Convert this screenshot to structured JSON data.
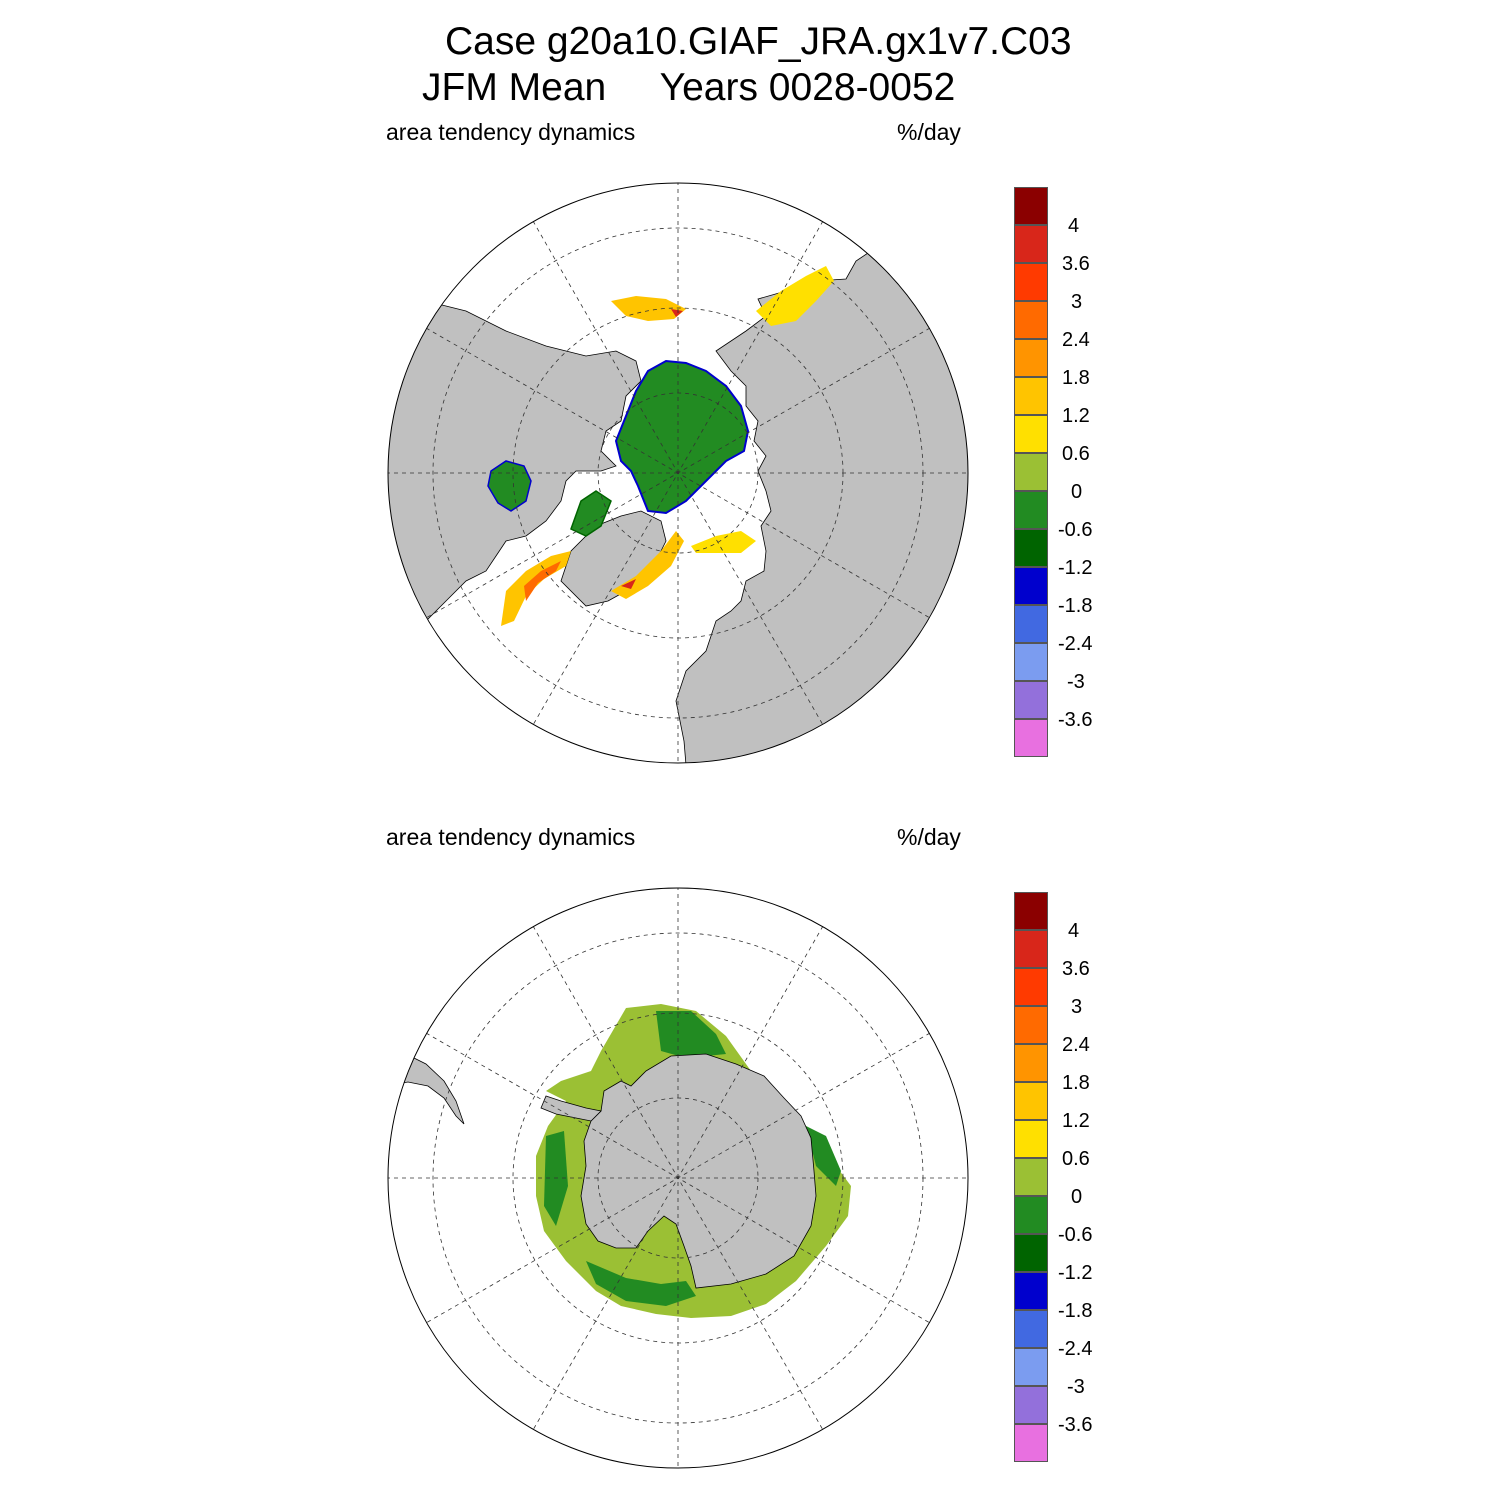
{
  "title": {
    "line1": "Case g20a10.GIAF_JRA.gx1v7.C03",
    "line2": "JFM Mean     Years 0028-0052"
  },
  "panels": [
    {
      "id": "north",
      "hemisphere": "Northern Hemisphere",
      "left_label": "area tendency dynamics",
      "right_label": "%/day"
    },
    {
      "id": "south",
      "hemisphere": "Southern Hemisphere",
      "left_label": "area tendency dynamics",
      "right_label": "%/day"
    }
  ],
  "colorbar": {
    "labels": [
      "4",
      "3.6",
      "3",
      "2.4",
      "1.8",
      "1.2",
      "0.6",
      "0",
      "-0.6",
      "-1.2",
      "-1.8",
      "-2.4",
      "-3",
      "-3.6"
    ],
    "colors": [
      "#8b0000",
      "#d8261a",
      "#ff3a00",
      "#ff6a00",
      "#ff9400",
      "#ffc400",
      "#ffe000",
      "#9bc034",
      "#228b22",
      "#006400",
      "#0000cd",
      "#4169e1",
      "#7b9cf0",
      "#9370db",
      "#e870e0"
    ]
  },
  "palette": {
    "land": "#c0c0c0",
    "ocean": "#ffffff",
    "grid": "#333333"
  }
}
